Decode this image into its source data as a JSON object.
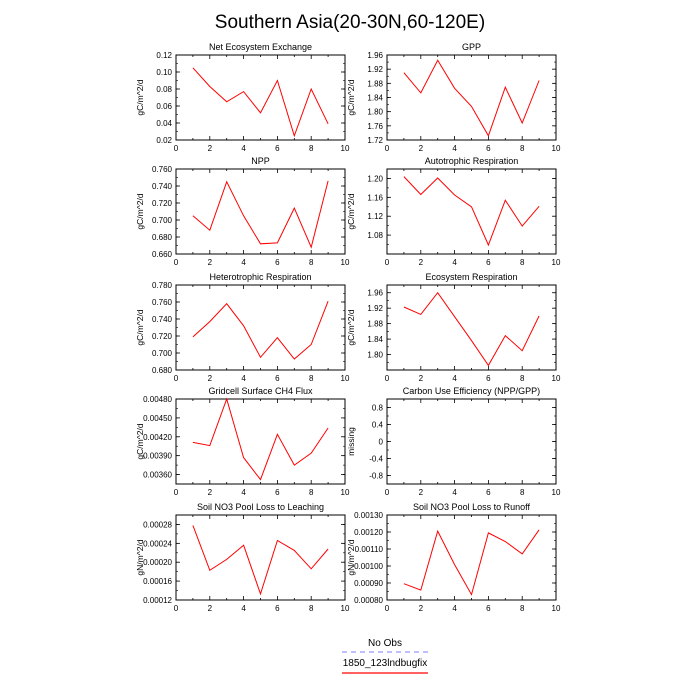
{
  "title": "Southern Asia(20-30N,60-120E)",
  "legend": {
    "items": [
      {
        "label": "No Obs",
        "color": "#9999ff",
        "dash": "dashed"
      },
      {
        "label": "1850_123lndbugfix",
        "color": "#ff0000",
        "dash": "solid"
      }
    ]
  },
  "colors": {
    "series": "#ff0000",
    "axis": "#000000"
  },
  "chart_data": [
    {
      "type": "line",
      "title": "Net Ecosystem Exchange",
      "ylabel": "gC/m^2/d",
      "xlim": [
        0,
        10
      ],
      "ylim": [
        0.02,
        0.12
      ],
      "xticks": [
        "0",
        "2",
        "4",
        "6",
        "8",
        "10"
      ],
      "yticks": [
        "0.02",
        "0.04",
        "0.06",
        "0.08",
        "0.10",
        "0.12"
      ],
      "series": [
        {
          "x": [
            1,
            2,
            3,
            4,
            5,
            6,
            7,
            8,
            9
          ],
          "values": [
            0.105,
            0.083,
            0.065,
            0.077,
            0.052,
            0.09,
            0.025,
            0.08,
            0.039
          ]
        }
      ]
    },
    {
      "type": "line",
      "title": "GPP",
      "ylabel": "gC/m^2/d",
      "xlim": [
        0,
        10
      ],
      "ylim": [
        1.72,
        1.96
      ],
      "xticks": [
        "0",
        "2",
        "4",
        "6",
        "8",
        "10"
      ],
      "yticks": [
        "1.72",
        "1.76",
        "1.80",
        "1.84",
        "1.88",
        "1.92",
        "1.96"
      ],
      "series": [
        {
          "x": [
            1,
            2,
            3,
            4,
            5,
            6,
            7,
            8,
            9
          ],
          "values": [
            1.91,
            1.853,
            1.945,
            1.866,
            1.815,
            1.732,
            1.869,
            1.768,
            1.888
          ]
        }
      ]
    },
    {
      "type": "line",
      "title": "NPP",
      "ylabel": "gC/m^2/d",
      "xlim": [
        0,
        10
      ],
      "ylim": [
        0.66,
        0.76
      ],
      "xticks": [
        "0",
        "2",
        "4",
        "6",
        "8",
        "10"
      ],
      "yticks": [
        "0.660",
        "0.680",
        "0.700",
        "0.720",
        "0.740",
        "0.760"
      ],
      "series": [
        {
          "x": [
            1,
            2,
            3,
            4,
            5,
            6,
            7,
            8,
            9
          ],
          "values": [
            0.705,
            0.688,
            0.745,
            0.705,
            0.672,
            0.673,
            0.714,
            0.668,
            0.746
          ]
        }
      ]
    },
    {
      "type": "line",
      "title": "Autotrophic Respiration",
      "ylabel": "gC/m^2/d",
      "xlim": [
        0,
        10
      ],
      "ylim": [
        1.04,
        1.22
      ],
      "xticks": [
        "0",
        "2",
        "4",
        "6",
        "8",
        "10"
      ],
      "yticks": [
        "1.08",
        "1.12",
        "1.16",
        "1.20"
      ],
      "series": [
        {
          "x": [
            1,
            2,
            3,
            4,
            5,
            6,
            7,
            8,
            9
          ],
          "values": [
            1.204,
            1.166,
            1.201,
            1.165,
            1.14,
            1.059,
            1.154,
            1.099,
            1.141
          ]
        }
      ]
    },
    {
      "type": "line",
      "title": "Heterotrophic Respiration",
      "ylabel": "gC/m^2/d",
      "xlim": [
        0,
        10
      ],
      "ylim": [
        0.68,
        0.78
      ],
      "xticks": [
        "0",
        "2",
        "4",
        "6",
        "8",
        "10"
      ],
      "yticks": [
        "0.680",
        "0.700",
        "0.720",
        "0.740",
        "0.760",
        "0.780"
      ],
      "series": [
        {
          "x": [
            1,
            2,
            3,
            4,
            5,
            6,
            7,
            8,
            9
          ],
          "values": [
            0.719,
            0.737,
            0.758,
            0.732,
            0.695,
            0.718,
            0.693,
            0.71,
            0.761
          ]
        }
      ]
    },
    {
      "type": "line",
      "title": "Ecosystem Respiration",
      "ylabel": "gC/m^2/d",
      "xlim": [
        0,
        10
      ],
      "ylim": [
        1.76,
        1.98
      ],
      "xticks": [
        "0",
        "2",
        "4",
        "6",
        "8",
        "10"
      ],
      "yticks": [
        "1.80",
        "1.84",
        "1.88",
        "1.92",
        "1.96"
      ],
      "series": [
        {
          "x": [
            1,
            2,
            3,
            4,
            5,
            6,
            7,
            8,
            9
          ],
          "values": [
            1.923,
            1.904,
            1.96,
            1.898,
            1.836,
            1.772,
            1.849,
            1.81,
            1.9
          ]
        }
      ]
    },
    {
      "type": "line",
      "title": "Gridcell Surface CH4 Flux",
      "ylabel": "gC/m^2/d",
      "xlim": [
        0,
        10
      ],
      "ylim": [
        0.00345,
        0.0048
      ],
      "xticks": [
        "0",
        "2",
        "4",
        "6",
        "8",
        "10"
      ],
      "yticks": [
        "0.00360",
        "0.00390",
        "0.00420",
        "0.00450",
        "0.00480"
      ],
      "series": [
        {
          "x": [
            1,
            2,
            3,
            4,
            5,
            6,
            7,
            8,
            9
          ],
          "values": [
            0.00411,
            0.00406,
            0.0048,
            0.00387,
            0.00352,
            0.00424,
            0.00375,
            0.00394,
            0.00434
          ]
        }
      ]
    },
    {
      "type": "line",
      "title": "Carbon Use Efficiency (NPP/GPP)",
      "ylabel": "missing",
      "xlim": [
        0,
        10
      ],
      "ylim": [
        -1.0,
        1.0
      ],
      "xticks": [
        "0",
        "2",
        "4",
        "6",
        "8",
        "10"
      ],
      "yticks": [
        "-0.8",
        "-0.4",
        "0",
        "0.4",
        "0.8"
      ],
      "series": []
    },
    {
      "type": "line",
      "title": "Soil NO3 Pool Loss to Leaching",
      "ylabel": "gN/m^2/d",
      "xlim": [
        0,
        10
      ],
      "ylim": [
        0.00012,
        0.0003
      ],
      "xticks": [
        "0",
        "2",
        "4",
        "6",
        "8",
        "10"
      ],
      "yticks": [
        "0.00012",
        "0.00016",
        "0.00020",
        "0.00024",
        "0.00028"
      ],
      "series": [
        {
          "x": [
            1,
            2,
            3,
            4,
            5,
            6,
            7,
            8,
            9
          ],
          "values": [
            0.000278,
            0.000183,
            0.000206,
            0.000236,
            0.000133,
            0.000246,
            0.000225,
            0.000186,
            0.000228
          ]
        }
      ]
    },
    {
      "type": "line",
      "title": "Soil NO3 Pool Loss to Runoff",
      "ylabel": "gN/m^2/d",
      "xlim": [
        0,
        10
      ],
      "ylim": [
        0.0008,
        0.0013
      ],
      "xticks": [
        "0",
        "2",
        "4",
        "6",
        "8",
        "10"
      ],
      "yticks": [
        "0.00080",
        "0.00090",
        "0.00100",
        "0.00110",
        "0.00120",
        "0.00130"
      ],
      "series": [
        {
          "x": [
            1,
            2,
            3,
            4,
            5,
            6,
            7,
            8,
            9
          ],
          "values": [
            0.000896,
            0.000858,
            0.001205,
            0.001008,
            0.000832,
            0.001195,
            0.001144,
            0.001071,
            0.001213
          ]
        }
      ]
    }
  ]
}
